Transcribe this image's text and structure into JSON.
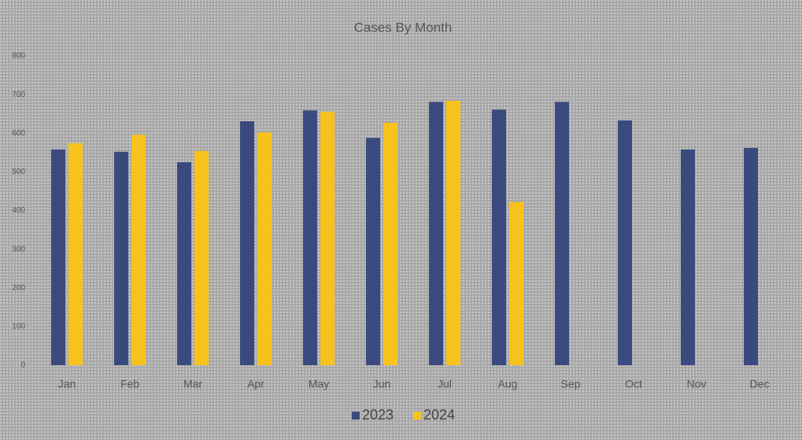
{
  "chart_data": {
    "type": "bar",
    "title": "Cases By Month",
    "categories": [
      "Jan",
      "Feb",
      "Mar",
      "Apr",
      "May",
      "Jun",
      "Jul",
      "Aug",
      "Sep",
      "Oct",
      "Nov",
      "Dec"
    ],
    "series": [
      {
        "name": "2023",
        "color": "#3b4a7e",
        "values": [
          558,
          552,
          525,
          631,
          659,
          588,
          681,
          661,
          681,
          633,
          558,
          562
        ]
      },
      {
        "name": "2024",
        "color": "#f7c21b",
        "values": [
          574,
          596,
          554,
          602,
          655,
          627,
          684,
          422,
          null,
          null,
          null,
          null
        ]
      }
    ],
    "ylim": [
      0,
      800
    ],
    "yticks": [
      0,
      100,
      200,
      300,
      400,
      500,
      600,
      700,
      800
    ],
    "grid": false,
    "legend": "bottom"
  }
}
